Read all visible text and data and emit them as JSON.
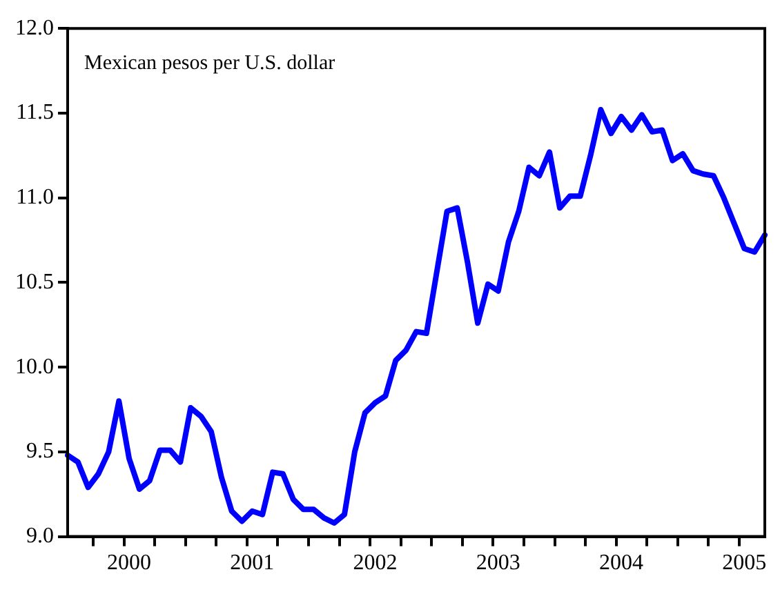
{
  "chart_data": {
    "type": "line",
    "annotations": [
      "Mexican pesos per U.S. dollar"
    ],
    "categories": [
      null,
      null,
      null,
      null,
      null,
      null,
      "2000",
      null,
      null,
      null,
      null,
      null,
      null,
      null,
      null,
      null,
      null,
      null,
      "2001",
      null,
      null,
      null,
      null,
      null,
      null,
      null,
      null,
      null,
      null,
      null,
      "2002",
      null,
      null,
      null,
      null,
      null,
      null,
      null,
      null,
      null,
      null,
      null,
      "2003",
      null,
      null,
      null,
      null,
      null,
      null,
      null,
      null,
      null,
      null,
      null,
      "2004",
      null,
      null,
      null,
      null,
      null,
      null,
      null,
      null,
      null,
      null,
      null,
      "2005",
      null,
      null
    ],
    "series": [
      {
        "color": "#0000ff",
        "values": [
          9.48,
          9.44,
          9.29,
          9.37,
          9.5,
          9.8,
          9.46,
          9.28,
          9.33,
          9.51,
          9.51,
          9.44,
          9.76,
          9.71,
          9.62,
          9.35,
          9.15,
          9.09,
          9.15,
          9.13,
          9.38,
          9.37,
          9.22,
          9.16,
          9.16,
          9.11,
          9.08,
          9.13,
          9.5,
          9.73,
          9.79,
          9.83,
          10.04,
          10.1,
          10.21,
          10.2,
          10.56,
          10.92,
          10.94,
          10.62,
          10.26,
          10.49,
          10.45,
          10.74,
          10.92,
          11.18,
          11.13,
          11.27,
          10.94,
          11.01,
          11.01,
          11.25,
          11.52,
          11.38,
          11.48,
          11.4,
          11.49,
          11.39,
          11.4,
          11.22,
          11.26,
          11.16,
          11.14,
          11.13,
          11.0,
          10.85,
          10.7,
          10.68,
          10.78
        ]
      }
    ],
    "ylim": [
      9,
      12
    ],
    "yticks": [
      {
        "value": 9,
        "label": "9.0"
      },
      9.5,
      {
        "value": 10,
        "label": "10.0"
      },
      10.5,
      {
        "value": 11,
        "label": "11.0"
      },
      11.5,
      {
        "value": 12,
        "label": "12.0"
      }
    ],
    "grid": false,
    "legend": false,
    "marker": "none",
    "line_style": "solid"
  }
}
